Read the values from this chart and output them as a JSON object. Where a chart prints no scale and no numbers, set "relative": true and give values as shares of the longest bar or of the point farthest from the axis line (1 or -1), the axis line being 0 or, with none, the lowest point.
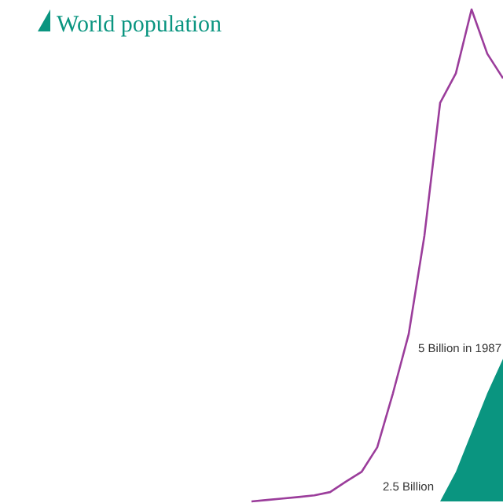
{
  "chart_data": {
    "type": "line",
    "relative": true,
    "legend": "top left",
    "categories": [
      null,
      null,
      null,
      null,
      null,
      null,
      null,
      null,
      null,
      null,
      null,
      null,
      null,
      null,
      null,
      null,
      null,
      null,
      null,
      null,
      null,
      null,
      null,
      null,
      null,
      null,
      null,
      null,
      null,
      null,
      null,
      null,
      null
    ],
    "series": [
      {
        "color": "#9b3d9b",
        "values": [
          null,
          null,
          null,
          null,
          null,
          null,
          null,
          null,
          null,
          null,
          null,
          null,
          null,
          null,
          null,
          null,
          0,
          0.003,
          0.006,
          0.009,
          0.0125,
          0.019,
          0.04,
          0.06,
          0.11,
          0.22,
          0.34,
          0.54,
          0.81,
          0.87,
          1,
          0.91,
          0.86
        ]
      },
      {
        "type": "area",
        "name": "World population",
        "color": "#0a9580",
        "values": [
          null,
          null,
          null,
          null,
          null,
          null,
          null,
          null,
          null,
          null,
          null,
          null,
          null,
          null,
          null,
          null,
          null,
          null,
          null,
          null,
          null,
          null,
          null,
          null,
          null,
          null,
          null,
          null,
          0,
          0.06,
          0.14,
          0.22,
          0.29
        ]
      }
    ],
    "annotations": [
      "5 Billion in 1987",
      "2.5 Billion"
    ]
  }
}
